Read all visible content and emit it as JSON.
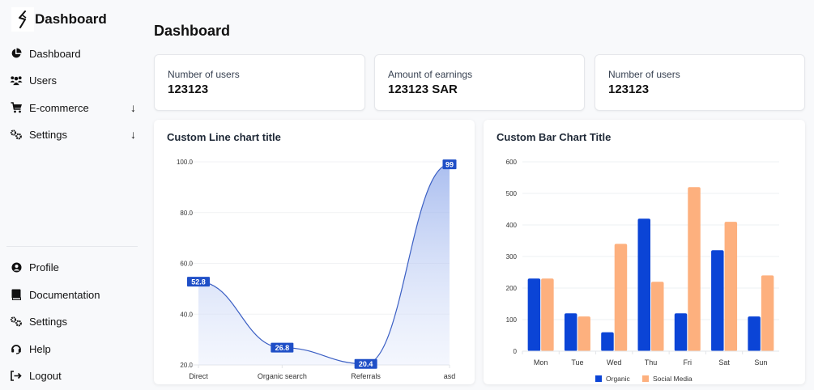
{
  "sidebar": {
    "brand": {
      "title": "Dashboard",
      "icon": "bolt-logo-icon"
    },
    "top_items": [
      {
        "label": "Dashboard",
        "icon": "chart-pie-icon"
      },
      {
        "label": "Users",
        "icon": "users-icon"
      },
      {
        "label": "E-commerce",
        "icon": "cart-icon",
        "expand_icon": "↓"
      },
      {
        "label": "Settings",
        "icon": "gears-icon",
        "expand_icon": "↓"
      }
    ],
    "bottom_items": [
      {
        "label": "Profile",
        "icon": "user-circle-icon"
      },
      {
        "label": "Documentation",
        "icon": "book-icon"
      },
      {
        "label": "Settings",
        "icon": "gears-icon"
      },
      {
        "label": "Help",
        "icon": "headset-icon"
      },
      {
        "label": "Logout",
        "icon": "logout-icon"
      }
    ]
  },
  "main": {
    "title": "Dashboard",
    "stats": [
      {
        "label": "Number of users",
        "value": "123123"
      },
      {
        "label": "Amount of earnings",
        "value": "123123 SAR"
      },
      {
        "label": "Number of users",
        "value": "123123"
      }
    ]
  },
  "colors": {
    "line": "#3b5fc4",
    "label_bg": "#1f4fc7",
    "organic": "#0b44d6",
    "social": "#fdb07e"
  },
  "chart_data": [
    {
      "type": "area",
      "title": "Custom Line chart title",
      "categories": [
        "Direct",
        "Organic search",
        "Referrals",
        "asd"
      ],
      "values": [
        52.8,
        26.8,
        20.4,
        99
      ],
      "data_labels": [
        "52.8",
        "26.8",
        "20.4",
        "99"
      ],
      "ylim": [
        20,
        100
      ],
      "yticks": [
        "20.0",
        "40.0",
        "60.0",
        "80.0",
        "100.0"
      ],
      "grid": true,
      "xlabel": "",
      "ylabel": ""
    },
    {
      "type": "bar",
      "title": "Custom Bar Chart Title",
      "categories": [
        "Mon",
        "Tue",
        "Wed",
        "Thu",
        "Fri",
        "Sat",
        "Sun"
      ],
      "series": [
        {
          "name": "Organic",
          "values": [
            230,
            120,
            60,
            420,
            120,
            320,
            110
          ]
        },
        {
          "name": "Social Media",
          "values": [
            230,
            110,
            340,
            220,
            520,
            410,
            240
          ]
        }
      ],
      "ylim": [
        0,
        600
      ],
      "yticks": [
        "0",
        "100",
        "200",
        "300",
        "400",
        "500",
        "600"
      ],
      "legend": "bottom",
      "grid": true,
      "xlabel": "",
      "ylabel": ""
    }
  ]
}
